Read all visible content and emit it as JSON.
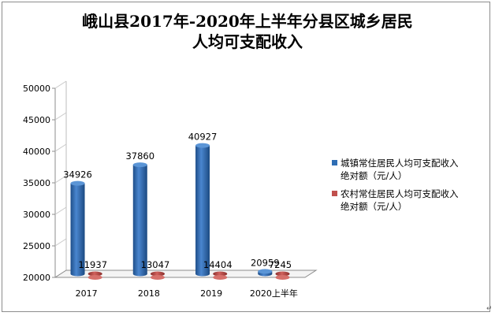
{
  "title": {
    "line1": "峨山县2017年-2020年上半年分县区城乡居民",
    "line2": "人均可支配收入"
  },
  "colors": {
    "urban": "#2E6DB4",
    "rural": "#C0504D"
  },
  "legend": [
    {
      "label_line1": "城镇常住居民人均可支配收入",
      "label_line2": "绝对额（元/人）"
    },
    {
      "label_line1": "农村常住居民人均可支配收入",
      "label_line2": "绝对额（元/人）"
    }
  ],
  "chart_data": {
    "type": "bar",
    "categories": [
      "2017",
      "2018",
      "2019",
      "2020上半年"
    ],
    "series": [
      {
        "name": "城镇常住居民人均可支配收入绝对额（元/人）",
        "values": [
          34926,
          37860,
          40927,
          20959
        ]
      },
      {
        "name": "农村常住居民人均可支配收入绝对额（元/人）",
        "values": [
          11937,
          13047,
          14404,
          7245
        ]
      }
    ],
    "ylim": [
      20000,
      50000
    ],
    "yticks": [
      "20000",
      "25000",
      "30000",
      "35000",
      "40000",
      "45000",
      "50000"
    ],
    "grid": false,
    "legend_position": "right",
    "style": "3d-cylinder"
  }
}
